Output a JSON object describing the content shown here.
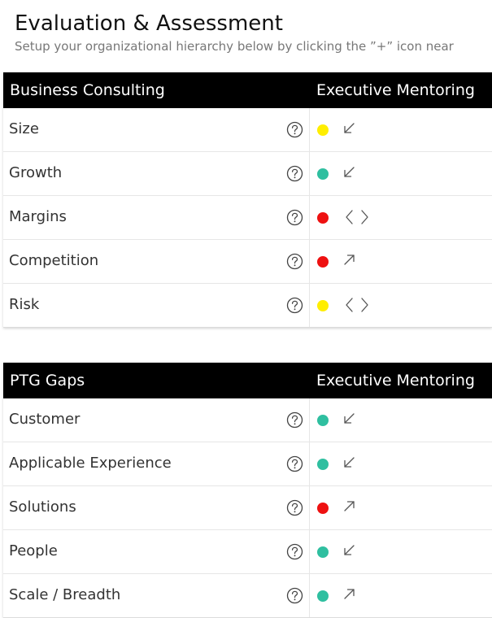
{
  "header": {
    "title": "Evaluation & Assessment",
    "subtitle": "Setup your organizational hierarchy below by clicking the ”+” icon near"
  },
  "colors": {
    "yellow": "#ffee00",
    "teal": "#2fbfa0",
    "red": "#ee1111"
  },
  "sections": [
    {
      "title": "Business Consulting",
      "column": "Executive Mentoring",
      "rows": [
        {
          "label": "Size",
          "status": "yellow",
          "trend": "arrow-down-left-icon"
        },
        {
          "label": "Growth",
          "status": "teal",
          "trend": "arrow-down-left-icon"
        },
        {
          "label": "Margins",
          "status": "red",
          "trend": "chevrons-left-right-icon"
        },
        {
          "label": "Competition",
          "status": "red",
          "trend": "arrow-up-right-icon"
        },
        {
          "label": "Risk",
          "status": "yellow",
          "trend": "chevrons-left-right-icon"
        }
      ]
    },
    {
      "title": "PTG Gaps",
      "column": "Executive Mentoring",
      "rows": [
        {
          "label": "Customer",
          "status": "teal",
          "trend": "arrow-down-left-icon"
        },
        {
          "label": "Applicable Experience",
          "status": "teal",
          "trend": "arrow-down-left-icon"
        },
        {
          "label": "Solutions",
          "status": "red",
          "trend": "arrow-up-right-icon"
        },
        {
          "label": "People",
          "status": "teal",
          "trend": "arrow-down-left-icon"
        },
        {
          "label": "Scale / Breadth",
          "status": "teal",
          "trend": "arrow-up-right-icon"
        }
      ]
    }
  ]
}
